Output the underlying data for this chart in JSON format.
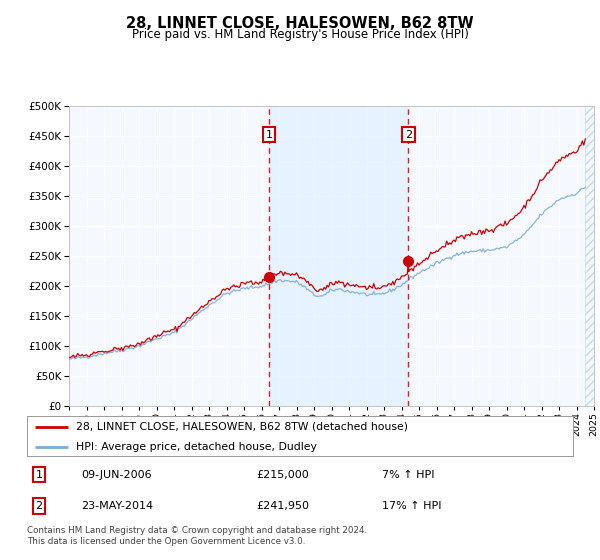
{
  "title": "28, LINNET CLOSE, HALESOWEN, B62 8TW",
  "subtitle": "Price paid vs. HM Land Registry's House Price Index (HPI)",
  "legend_line1": "28, LINNET CLOSE, HALESOWEN, B62 8TW (detached house)",
  "legend_line2": "HPI: Average price, detached house, Dudley",
  "annotation1_date": "09-JUN-2006",
  "annotation1_price": "£215,000",
  "annotation1_hpi": "7% ↑ HPI",
  "annotation1_year": 2006.44,
  "annotation1_value": 215000,
  "annotation2_date": "23-MAY-2014",
  "annotation2_price": "£241,950",
  "annotation2_hpi": "17% ↑ HPI",
  "annotation2_year": 2014.39,
  "annotation2_value": 241950,
  "sale_color": "#cc0000",
  "hpi_color": "#7aaddb",
  "shade_color": "#ddeeff",
  "vline_color": "#cc0000",
  "background_color": "#ffffff",
  "plot_bg_color": "#f5f8ff",
  "grid_color": "#ffffff",
  "ylim": [
    0,
    500000
  ],
  "xlim_start": 1995,
  "xlim_end": 2025,
  "footer": "Contains HM Land Registry data © Crown copyright and database right 2024.\nThis data is licensed under the Open Government Licence v3.0."
}
